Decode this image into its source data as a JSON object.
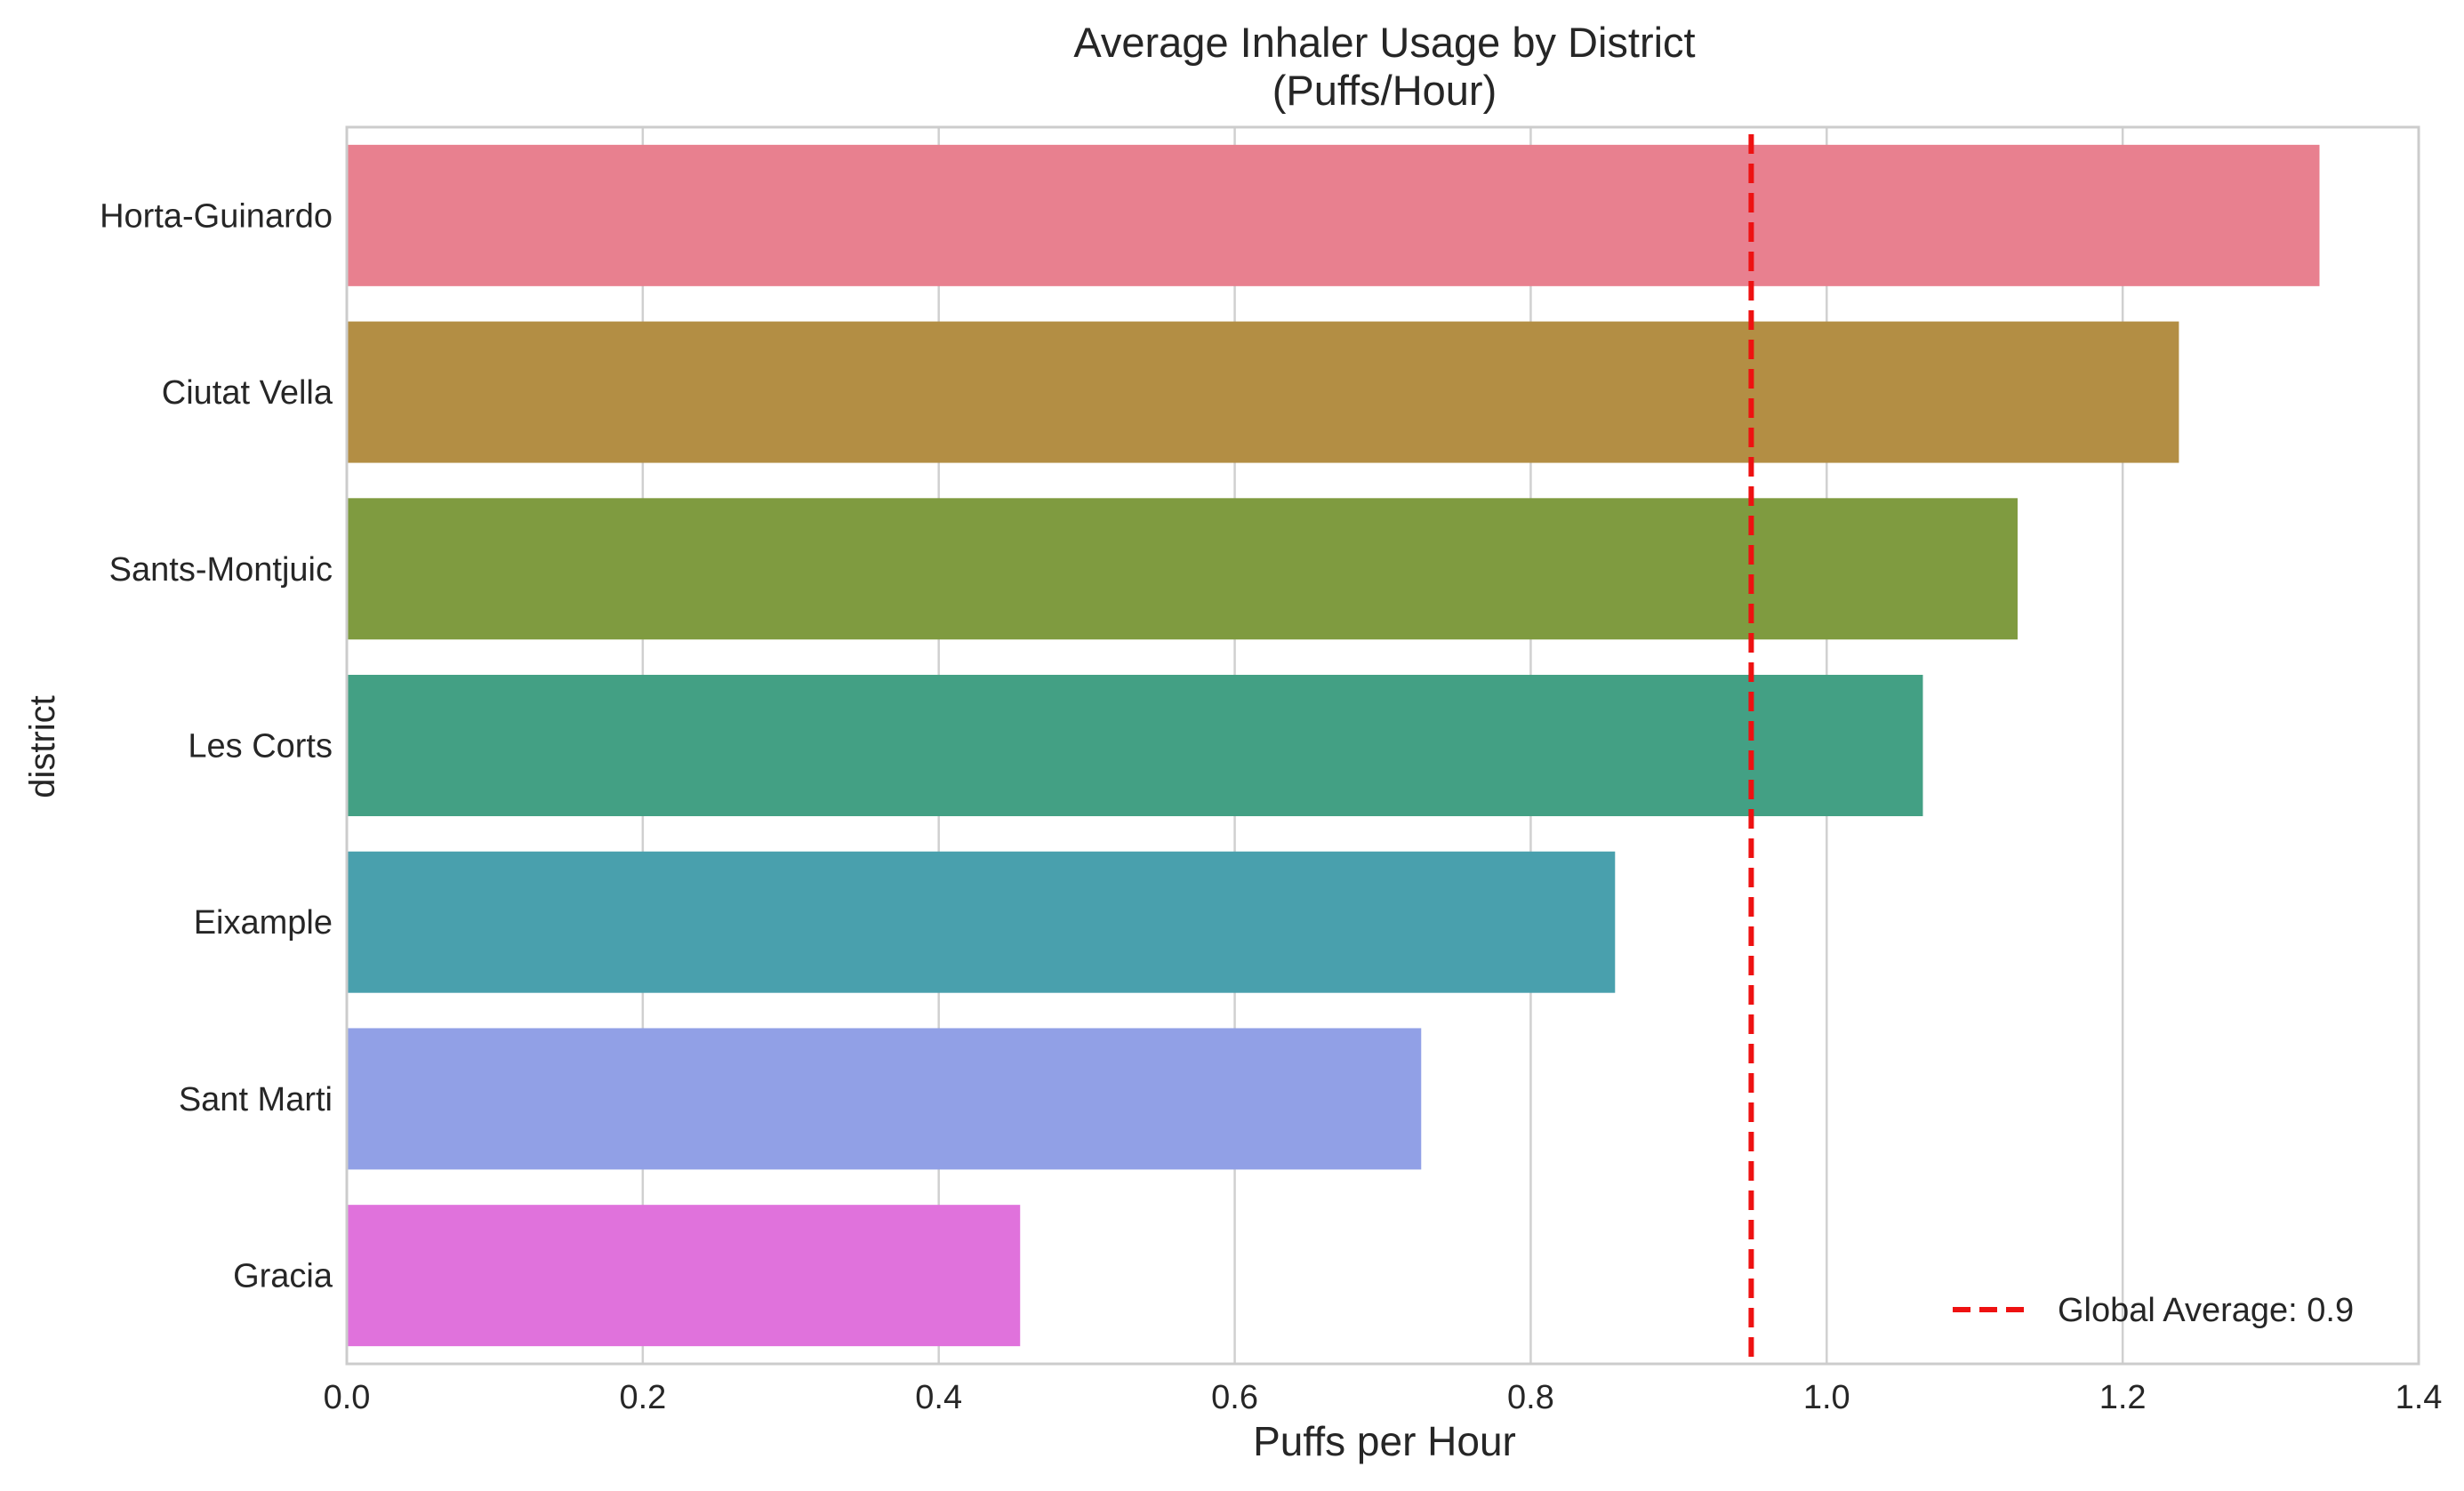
{
  "chart_data": {
    "type": "bar",
    "orientation": "horizontal",
    "title": "Average Inhaler Usage by District",
    "subtitle": "(Puffs/Hour)",
    "xlabel": "Puffs per Hour",
    "ylabel": "district",
    "xlim": [
      0.0,
      1.4
    ],
    "xticks": [
      "0.0",
      "0.2",
      "0.4",
      "0.6",
      "0.8",
      "1.0",
      "1.2",
      "1.4"
    ],
    "grid": true,
    "categories": [
      "Horta-Guinardo",
      "Ciutat Vella",
      "Sants-Montjuic",
      "Les Corts",
      "Eixample",
      "Sant Marti",
      "Gracia"
    ],
    "values": [
      1.333,
      1.238,
      1.129,
      1.065,
      0.857,
      0.726,
      0.455
    ],
    "colors": [
      "#e8808f",
      "#b38e44",
      "#7f9b40",
      "#43a084",
      "#49a0ad",
      "#91a0e6",
      "#e072dc"
    ],
    "reference_line": {
      "value": 0.949,
      "color": "#ee1111",
      "style": "dashed",
      "label": "Global Average: 0.9"
    },
    "legend_position": "lower-right"
  }
}
